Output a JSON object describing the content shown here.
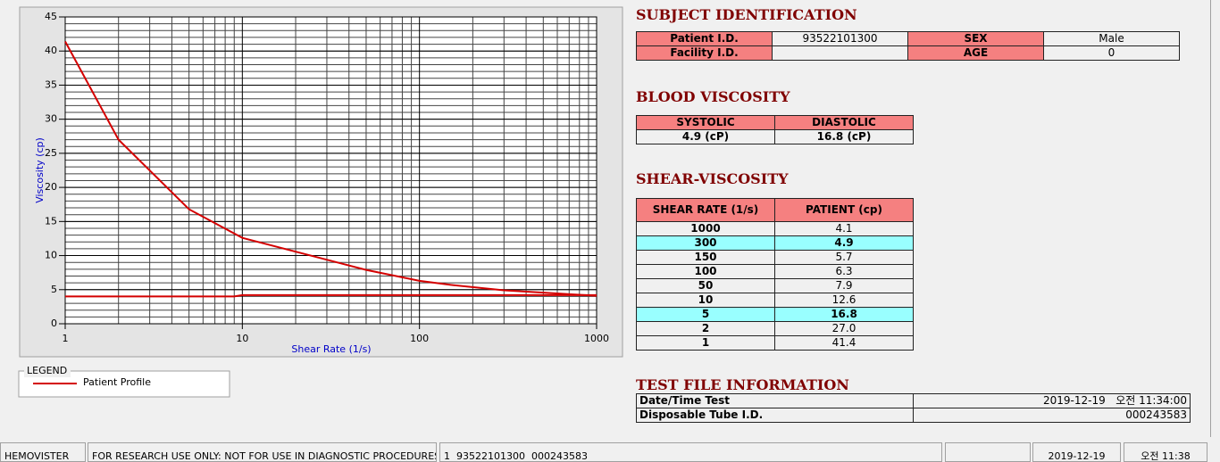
{
  "chart_data": {
    "type": "line",
    "x_label": "Shear Rate (1/s)",
    "y_label": "Viscosity (cp)",
    "log_x": true,
    "grid": true,
    "xlim": [
      1,
      1000
    ],
    "ylim": [
      0,
      45
    ],
    "xticks": [
      1,
      10,
      100,
      1000
    ],
    "yticks": [
      0,
      5,
      10,
      15,
      20,
      25,
      30,
      35,
      40,
      45
    ],
    "legend_title": "LEGEND",
    "series": [
      {
        "name": "Patient Profile",
        "color": "#d40000",
        "x": [
          1,
          2,
          5,
          10,
          50,
          100,
          150,
          300,
          1000
        ],
        "values": [
          41.4,
          27.0,
          16.8,
          12.6,
          7.9,
          6.3,
          5.7,
          4.9,
          4.1
        ]
      },
      {
        "color": "#d40000",
        "x": [
          1,
          9,
          10,
          1000
        ],
        "values": [
          4.0,
          4.0,
          4.2,
          4.2
        ]
      }
    ]
  },
  "subject_identification": {
    "title": "SUBJECT IDENTIFICATION",
    "rows": [
      [
        "Patient I.D.",
        "93522101300",
        "SEX",
        "Male"
      ],
      [
        "Facility I.D.",
        null,
        "AGE",
        "0"
      ]
    ]
  },
  "blood_viscosity": {
    "title": "BLOOD VISCOSITY",
    "header": [
      "SYSTOLIC",
      "DIASTOLIC"
    ],
    "values": [
      "4.9 (cP)",
      "16.8 (cP)"
    ]
  },
  "shear_viscosity": {
    "title": "SHEAR-VISCOSITY",
    "header": [
      "SHEAR RATE (1/s)",
      "PATIENT (cp)"
    ],
    "rows": [
      {
        "cells": [
          "1000",
          "4.1"
        ]
      },
      {
        "cells": [
          "300",
          "4.9"
        ],
        "highlight": true
      },
      {
        "cells": [
          "150",
          "5.7"
        ]
      },
      {
        "cells": [
          "100",
          "6.3"
        ]
      },
      {
        "cells": [
          "50",
          "7.9"
        ]
      },
      {
        "cells": [
          "10",
          "12.6"
        ]
      },
      {
        "cells": [
          "5",
          "16.8"
        ],
        "highlight": true
      },
      {
        "cells": [
          "2",
          "27.0"
        ]
      },
      {
        "cells": [
          "1",
          "41.4"
        ]
      }
    ]
  },
  "test_file_information": {
    "title": "TEST FILE INFORMATION",
    "rows": [
      [
        "Date/Time Test",
        "2019-12-19   오전 11:34:00"
      ],
      [
        "Disposable Tube I.D.",
        "000243583"
      ]
    ]
  },
  "status_bar": [
    "HEMOVISTER",
    "FOR RESEARCH USE ONLY: NOT FOR USE IN DIAGNOSTIC PROCEDURES",
    "1  93522101300  000243583",
    null,
    "2019-12-19",
    "오전 11:38"
  ]
}
